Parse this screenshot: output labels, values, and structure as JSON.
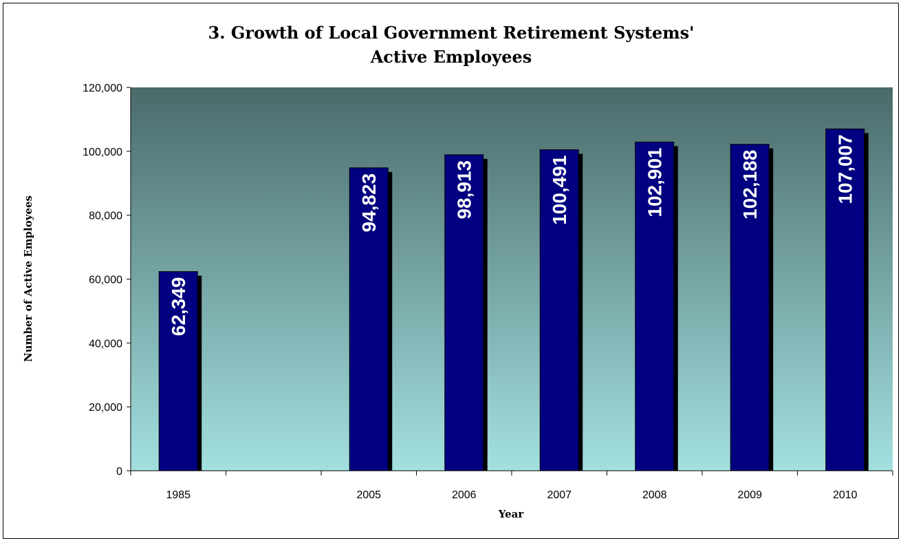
{
  "chart_data": {
    "type": "bar",
    "title_lines": [
      "3. Growth of Local Government Retirement Systems'",
      "Active Employees"
    ],
    "xlabel": "Year",
    "ylabel": "Number of Active Employees",
    "categories": [
      "1985",
      "",
      "2005",
      "2006",
      "2007",
      "2008",
      "2009",
      "2010"
    ],
    "values": [
      62349,
      null,
      94823,
      98913,
      100491,
      102901,
      102188,
      107007
    ],
    "data_labels": [
      "62,349",
      "",
      "94,823",
      "98,913",
      "100,491",
      "102,901",
      "102,188",
      "107,007"
    ],
    "ylim": [
      0,
      120000
    ],
    "yticks": [
      0,
      20000,
      40000,
      60000,
      80000,
      100000,
      120000
    ],
    "ytick_labels": [
      "0",
      "20,000",
      "40,000",
      "60,000",
      "80,000",
      "100,000",
      "120,000"
    ],
    "grid": false,
    "legend": "none",
    "colors": {
      "bar_fill": "#000080",
      "bar_shadow": "#000000",
      "plot_bg_top": "#4a6a6a",
      "plot_bg_bottom": "#a3e0e0"
    }
  }
}
